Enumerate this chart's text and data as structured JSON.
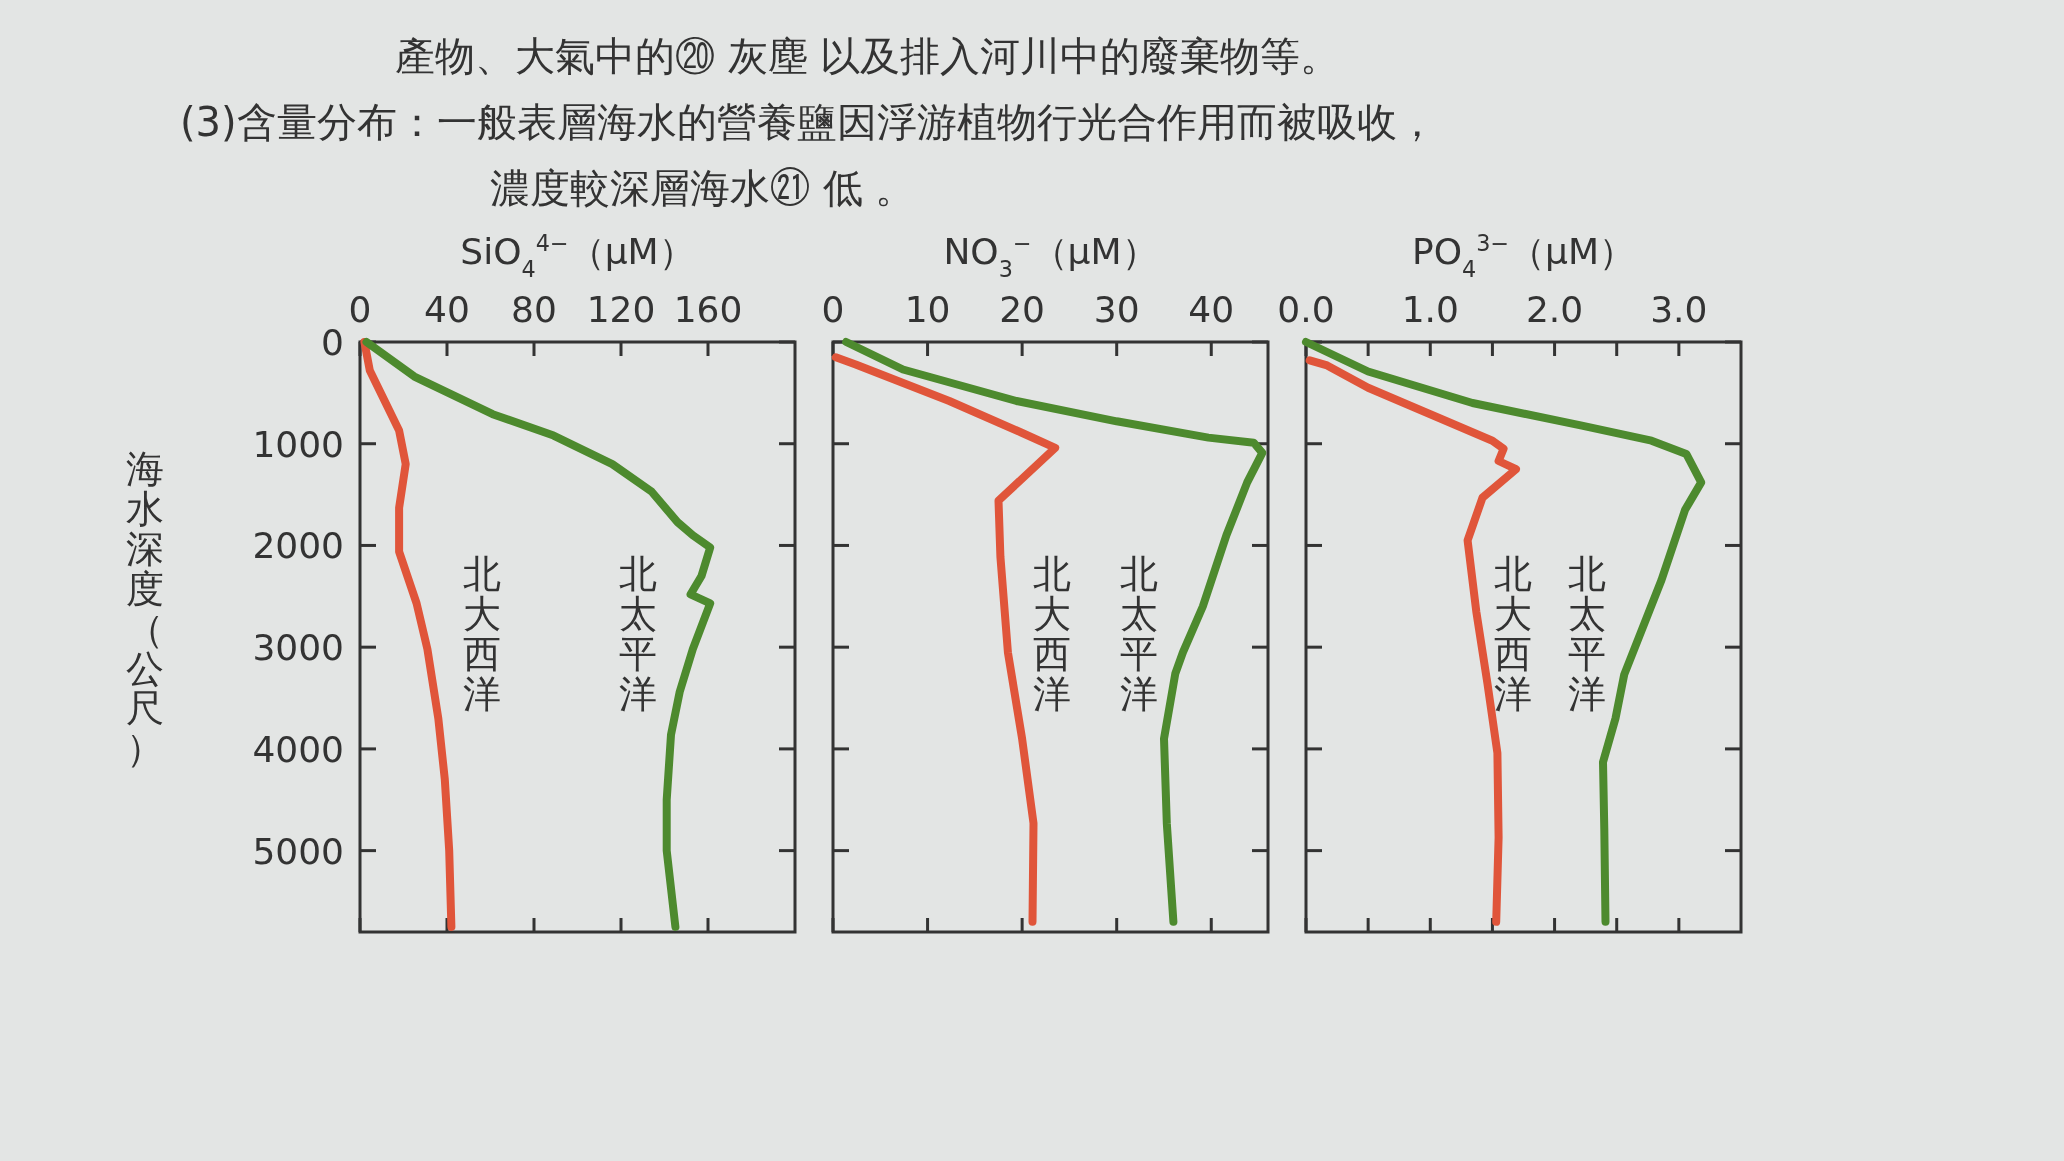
{
  "chart_data": [
    {
      "type": "line",
      "xlabel": "SiO$_{4}$$^{4−}$（μM）",
      "ylabel": "海水深度（公尺）",
      "xlim": [
        0,
        200
      ],
      "xticks": [
        0,
        40,
        80,
        120,
        160
      ],
      "ylim": [
        5800,
        0
      ],
      "yticks": [
        0,
        1000,
        2000,
        3000,
        4000,
        5000
      ],
      "annotations": [
        "產物、大氣中的⑳ 灰塵 以及排入河川中的廢棄物等。",
        "(3)含量分布：一般表層海水的營養鹽因浮游植物行光合作用而被吸收，",
        "濃度較深層海水㉑ 低 。"
      ],
      "series": [
        {
          "name": "北大西洋",
          "color": "#e0553a",
          "x": [
            2,
            4.5,
            18,
            21,
            18,
            18,
            26,
            31,
            36,
            39,
            41,
            42
          ],
          "values": [
            0,
            280,
            870,
            1200,
            1630,
            2060,
            2570,
            3020,
            3700,
            4300,
            5000,
            5750
          ]
        },
        {
          "name": "北太平洋",
          "color": "#4d8a2e",
          "x": [
            3,
            25,
            61,
            89,
            116,
            134,
            146,
            153,
            161,
            157,
            152,
            161,
            153,
            147,
            143,
            141,
            141,
            145
          ],
          "values": [
            0,
            340,
            710,
            920,
            1200,
            1470,
            1770,
            1900,
            2020,
            2300,
            2480,
            2570,
            3020,
            3440,
            3860,
            4500,
            5000,
            5750
          ]
        }
      ]
    },
    {
      "type": "line",
      "xlabel": "NO$_{3}$$^{−}$（μM）",
      "xlim": [
        0,
        46
      ],
      "xticks": [
        0,
        10,
        20,
        30,
        40
      ],
      "ylim": [
        5800,
        0
      ],
      "yticks": [
        0,
        1000,
        2000,
        3000,
        4000,
        5000
      ],
      "tick_labels": "x",
      "series": [
        {
          "name": "北大西洋",
          "color": "#e0553a",
          "x": [
            0.3,
            2.4,
            12.3,
            19.9,
            23.5,
            17.5,
            17.7,
            18.5,
            20,
            21.2,
            21.1
          ],
          "values": [
            150,
            220,
            580,
            890,
            1040,
            1560,
            2110,
            3050,
            3900,
            4730,
            5700
          ]
        },
        {
          "name": "北太平洋",
          "color": "#4d8a2e",
          "x": [
            1.4,
            7.4,
            19.4,
            30,
            39.7,
            44.5,
            45.4,
            43.8,
            41.6,
            39.1,
            37,
            36.2,
            35,
            35.3,
            36
          ],
          "values": [
            0,
            270,
            580,
            780,
            940,
            990,
            1090,
            1380,
            1900,
            2600,
            3050,
            3260,
            3900,
            4730,
            5700
          ]
        }
      ]
    },
    {
      "type": "line",
      "xlabel": "PO$_{4}$$^{3−}$（μM）",
      "xlim": [
        0,
        3.5
      ],
      "xticks": [
        {
          "value": 0,
          "label": "0.0"
        },
        {
          "value": 0.5,
          "label": null
        },
        {
          "value": 1,
          "label": "1.0"
        },
        {
          "value": 1.5,
          "label": null
        },
        {
          "value": 2,
          "label": "2.0"
        },
        {
          "value": 2.5,
          "label": null
        },
        {
          "value": 3,
          "label": "3.0"
        }
      ],
      "ylim": [
        5800,
        0
      ],
      "yticks": [
        0,
        1000,
        2000,
        3000,
        4000,
        5000
      ],
      "tick_labels": "x",
      "series": [
        {
          "name": "北大西洋",
          "color": "#e0553a",
          "x": [
            0.03,
            0.17,
            0.5,
            1.0,
            1.5,
            1.59,
            1.55,
            1.69,
            1.42,
            1.3,
            1.37,
            1.46,
            1.54,
            1.55,
            1.53
          ],
          "values": [
            180,
            230,
            450,
            710,
            970,
            1050,
            1170,
            1250,
            1530,
            1950,
            2650,
            3360,
            4040,
            4870,
            5700
          ]
        },
        {
          "name": "北太平洋",
          "color": "#4d8a2e",
          "x": [
            0,
            0.5,
            1.34,
            2.21,
            2.78,
            3.06,
            3.18,
            3.05,
            2.86,
            2.56,
            2.49,
            2.39,
            2.4,
            2.41
          ],
          "values": [
            0,
            290,
            600,
            820,
            970,
            1100,
            1380,
            1650,
            2340,
            3270,
            3700,
            4130,
            4790,
            5700
          ]
        }
      ]
    }
  ]
}
